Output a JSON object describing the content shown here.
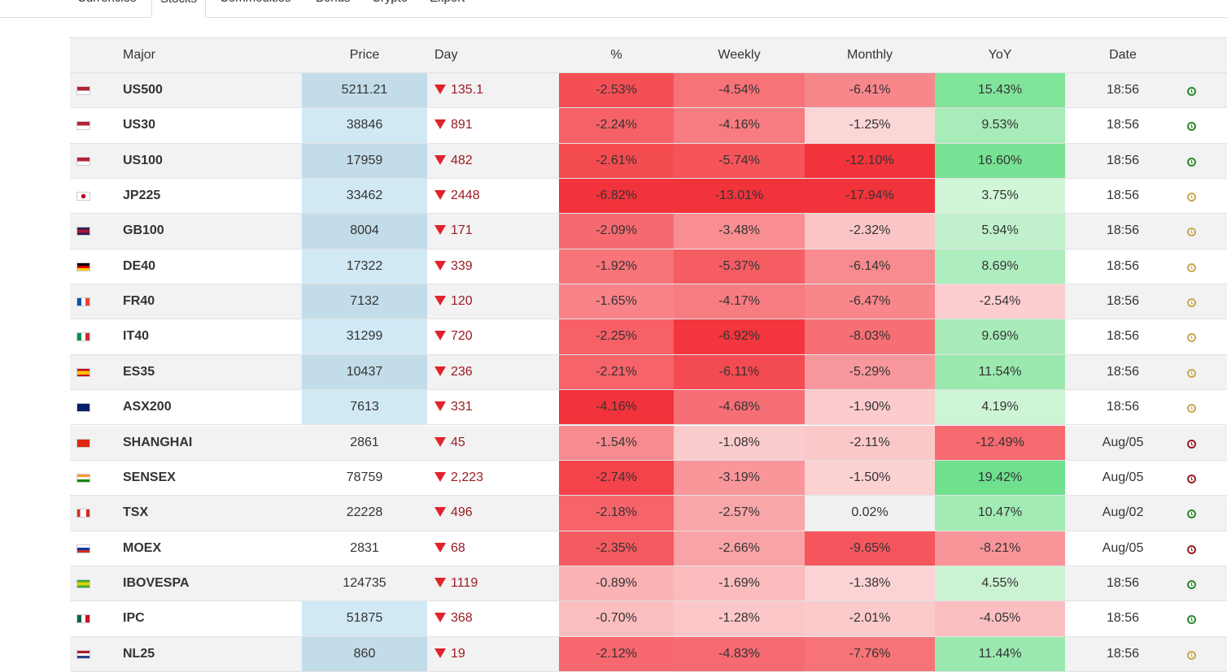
{
  "tabs": [
    "Currencies",
    "Stocks",
    "Commodities",
    "Bonds",
    "Crypto",
    "Export"
  ],
  "table": {
    "headers": [
      "Major",
      "Price",
      "Day",
      "%",
      "Weekly",
      "Monthly",
      "YoY",
      "Date"
    ],
    "rows": [
      [
        "US500",
        "5211.21",
        "135.1",
        "-2.53%",
        "-4.54%",
        "-6.41%",
        "15.43%",
        "18:56"
      ],
      [
        "US30",
        "38846",
        "891",
        "-2.24%",
        "-4.16%",
        "-1.25%",
        "9.53%",
        "18:56"
      ],
      [
        "US100",
        "17959",
        "482",
        "-2.61%",
        "-5.74%",
        "-12.10%",
        "16.60%",
        "18:56"
      ],
      [
        "JP225",
        "33462",
        "2448",
        "-6.82%",
        "-13.01%",
        "-17.94%",
        "3.75%",
        "18:56"
      ],
      [
        "GB100",
        "8004",
        "171",
        "-2.09%",
        "-3.48%",
        "-2.32%",
        "5.94%",
        "18:56"
      ],
      [
        "DE40",
        "17322",
        "339",
        "-1.92%",
        "-5.37%",
        "-6.14%",
        "8.69%",
        "18:56"
      ],
      [
        "FR40",
        "7132",
        "120",
        "-1.65%",
        "-4.17%",
        "-6.47%",
        "-2.54%",
        "18:56"
      ],
      [
        "IT40",
        "31299",
        "720",
        "-2.25%",
        "-6.92%",
        "-8.03%",
        "9.69%",
        "18:56"
      ],
      [
        "ES35",
        "10437",
        "236",
        "-2.21%",
        "-6.11%",
        "-5.29%",
        "11.54%",
        "18:56"
      ],
      [
        "ASX200",
        "7613",
        "331",
        "-4.16%",
        "-4.68%",
        "-1.90%",
        "4.19%",
        "18:56"
      ],
      [
        "SHANGHAI",
        "2861",
        "45",
        "-1.54%",
        "-1.08%",
        "-2.11%",
        "-12.49%",
        "Aug/05"
      ],
      [
        "SENSEX",
        "78759",
        "2,223",
        "-2.74%",
        "-3.19%",
        "-1.50%",
        "19.42%",
        "Aug/05"
      ],
      [
        "TSX",
        "22228",
        "496",
        "-2.18%",
        "-2.57%",
        "0.02%",
        "10.47%",
        "Aug/02"
      ],
      [
        "MOEX",
        "2831",
        "68",
        "-2.35%",
        "-2.66%",
        "-9.65%",
        "-8.21%",
        "Aug/05"
      ],
      [
        "IBOVESPA",
        "124735",
        "1119",
        "-0.89%",
        "-1.69%",
        "-1.38%",
        "4.55%",
        "18:56"
      ],
      [
        "IPC",
        "51875",
        "368",
        "-0.70%",
        "-1.28%",
        "-2.01%",
        "-4.05%",
        "18:56"
      ],
      [
        "NL25",
        "860",
        "19",
        "-2.12%",
        "-4.83%",
        "-7.76%",
        "11.44%",
        "18:56"
      ]
    ]
  }
}
